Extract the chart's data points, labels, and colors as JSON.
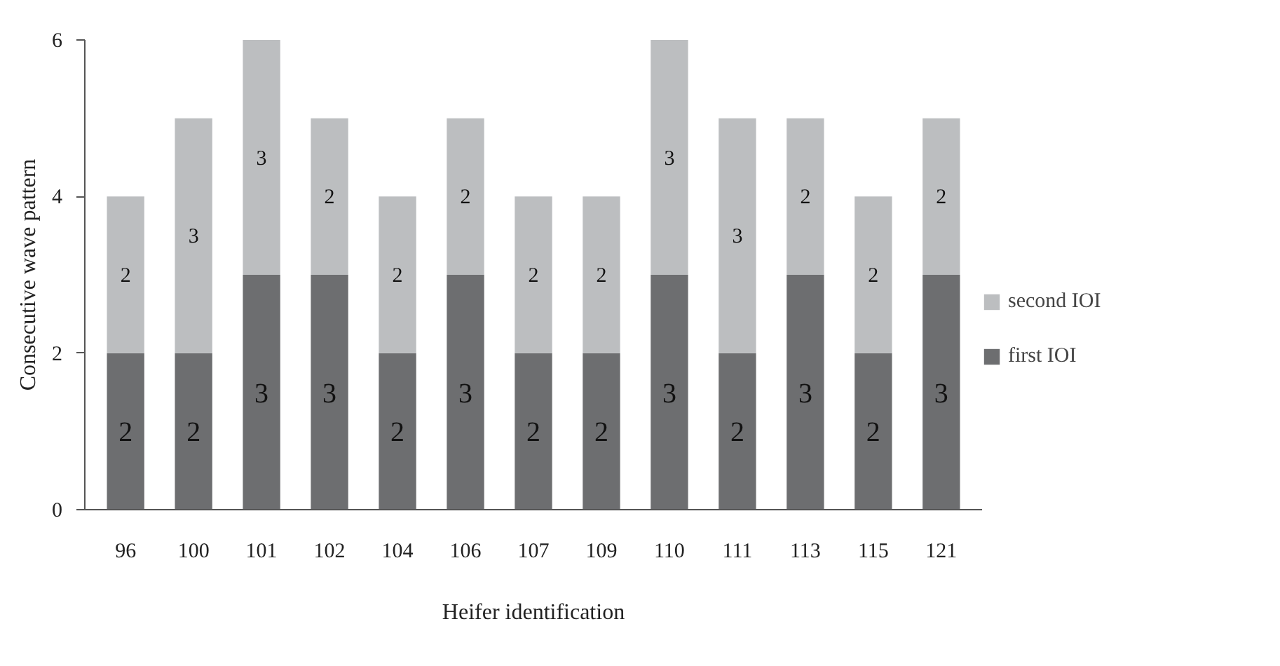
{
  "chart_data": {
    "type": "bar",
    "stacked": true,
    "xlabel": "Heifer identification",
    "ylabel": "Consecutive wave pattern",
    "categories": [
      "96",
      "100",
      "101",
      "102",
      "104",
      "106",
      "107",
      "109",
      "110",
      "111",
      "113",
      "115",
      "121"
    ],
    "series": [
      {
        "name": "first IOI",
        "color": "#6d6e70",
        "values": [
          2,
          2,
          3,
          3,
          2,
          3,
          2,
          2,
          3,
          2,
          3,
          2,
          3
        ]
      },
      {
        "name": "second IOI",
        "color": "#bcbec0",
        "values": [
          2,
          3,
          3,
          2,
          2,
          2,
          2,
          2,
          3,
          3,
          2,
          2,
          2
        ]
      }
    ],
    "ylim": [
      0,
      6
    ],
    "yticks": [
      0,
      2,
      4,
      6
    ],
    "data_labels": true,
    "legend": "right",
    "grid": false
  }
}
